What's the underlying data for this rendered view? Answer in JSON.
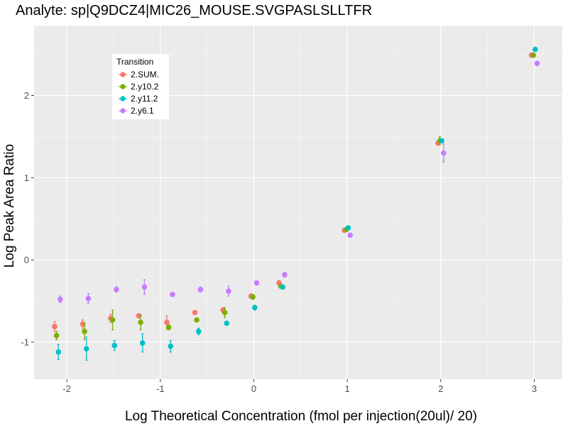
{
  "chart_data": {
    "type": "scatter",
    "title": "Analyte: sp|Q9DCZ4|MIC26_MOUSE.SVGPASLSLLTFR",
    "xlabel": "Log Theoretical Concentration (fmol per injection(20ul)/ 20)",
    "ylabel": "Log Peak Area Ratio",
    "xlim": [
      -2.35,
      3.3
    ],
    "ylim": [
      -1.45,
      2.85
    ],
    "x_ticks": [
      -2,
      -1,
      0,
      1,
      2,
      3
    ],
    "x_tick_labels": [
      "-2",
      "-1",
      "0",
      "1",
      "2",
      "3"
    ],
    "y_ticks": [
      -1,
      0,
      1,
      2
    ],
    "y_tick_labels": [
      "-1",
      "0",
      "1",
      "2"
    ],
    "grid": true,
    "legend": {
      "title": "Transition",
      "placement": "top-left"
    },
    "x": [
      -2.1,
      -1.8,
      -1.5,
      -1.2,
      -0.9,
      -0.6,
      -0.3,
      0,
      0.3,
      1,
      2,
      3
    ],
    "series": [
      {
        "name": "2.SUM.",
        "color": "#F8766D",
        "y": [
          -0.81,
          -0.78,
          -0.71,
          -0.68,
          -0.76,
          -0.64,
          -0.61,
          -0.44,
          -0.28,
          0.36,
          1.42,
          2.49
        ],
        "err": [
          0.06,
          0.05,
          0.05,
          0.02,
          0.08,
          0.02,
          0.03,
          0.02,
          0.03,
          0.02,
          0.02,
          0.02
        ]
      },
      {
        "name": "2.y10.2",
        "color": "#7CAE00",
        "y": [
          -0.92,
          -0.87,
          -0.73,
          -0.76,
          -0.82,
          -0.73,
          -0.64,
          -0.45,
          -0.32,
          0.37,
          1.45,
          2.49
        ],
        "err": [
          0.05,
          0.1,
          0.12,
          0.09,
          0.03,
          0.02,
          0.06,
          0.03,
          0.02,
          0.02,
          0.05,
          0.02
        ]
      },
      {
        "name": "2.y11.2",
        "color": "#00BFC4",
        "y": [
          -1.12,
          -1.08,
          -1.04,
          -1.01,
          -1.05,
          -0.87,
          -0.77,
          -0.58,
          -0.33,
          0.39,
          1.45,
          2.56
        ],
        "err": [
          0.09,
          0.14,
          0.06,
          0.11,
          0.07,
          0.04,
          0.02,
          0.03,
          0.02,
          0.02,
          0.02,
          0.02
        ]
      },
      {
        "name": "2.y6.1",
        "color": "#C77CFF",
        "y": [
          -0.48,
          -0.47,
          -0.36,
          -0.33,
          -0.42,
          -0.36,
          -0.38,
          -0.28,
          -0.18,
          0.3,
          1.3,
          2.39
        ],
        "err": [
          0.04,
          0.06,
          0.03,
          0.09,
          0.02,
          0.03,
          0.06,
          0.02,
          0.03,
          0.02,
          0.11,
          0.02
        ]
      }
    ],
    "x_jitter": [
      -0.03,
      -0.01,
      0.01,
      0.03
    ]
  }
}
